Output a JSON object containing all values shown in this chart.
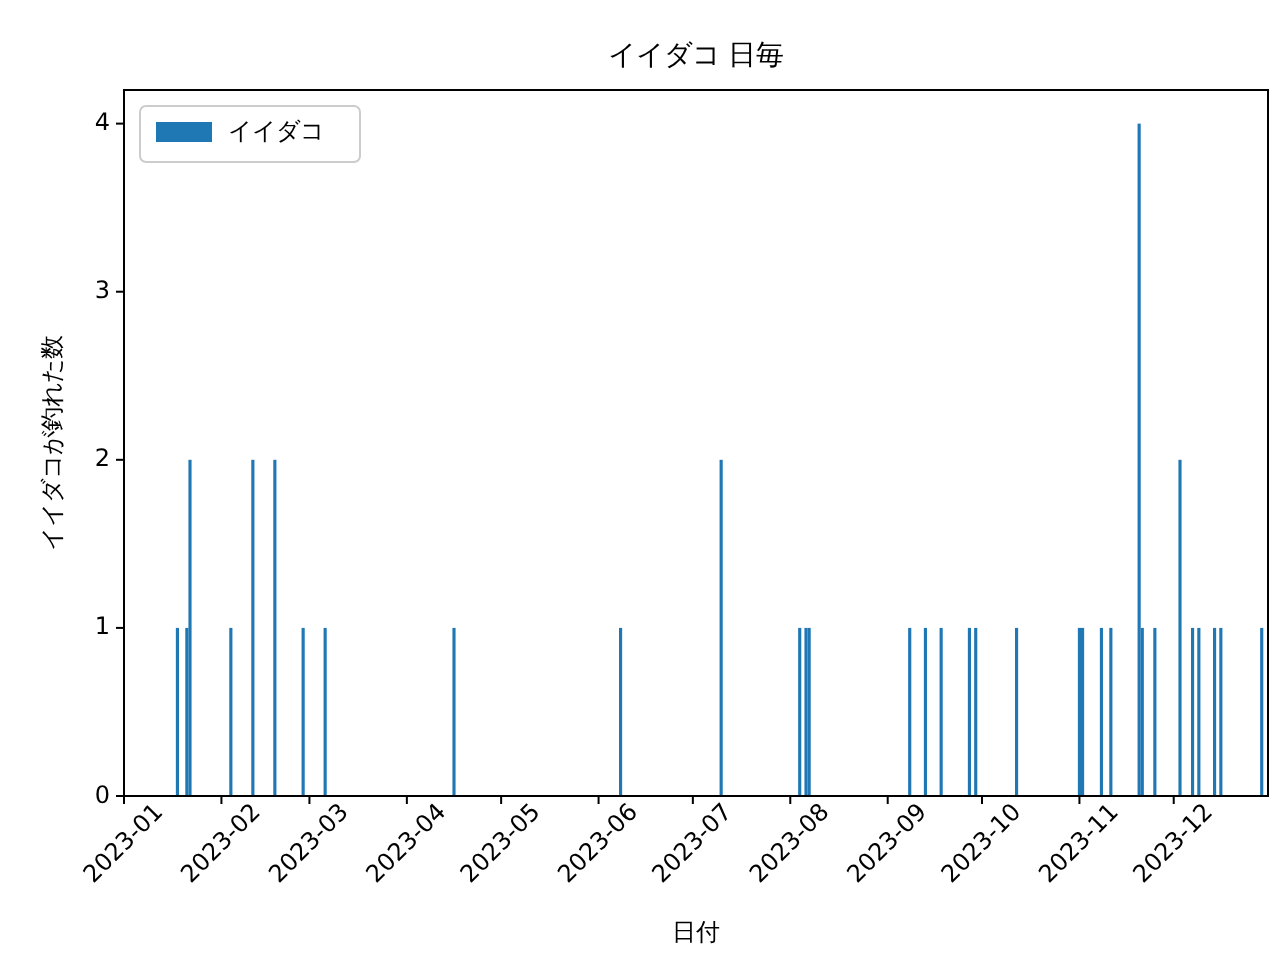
{
  "chart_data": {
    "type": "bar",
    "title": "イイダコ 日毎",
    "xlabel": "日付",
    "ylabel": "イイダコが釣れた数",
    "x": [
      "2023-01-18",
      "2023-01-21",
      "2023-01-22",
      "2023-02-04",
      "2023-02-11",
      "2023-02-18",
      "2023-02-27",
      "2023-03-06",
      "2023-04-16",
      "2023-06-08",
      "2023-07-10",
      "2023-08-04",
      "2023-08-06",
      "2023-08-07",
      "2023-09-08",
      "2023-09-13",
      "2023-09-18",
      "2023-09-27",
      "2023-09-29",
      "2023-10-12",
      "2023-11-01",
      "2023-11-02",
      "2023-11-08",
      "2023-11-11",
      "2023-11-20",
      "2023-11-21",
      "2023-11-25",
      "2023-12-03",
      "2023-12-07",
      "2023-12-09",
      "2023-12-14",
      "2023-12-16",
      "2023-12-29"
    ],
    "series": [
      {
        "name": "イイダコ",
        "color": "#1f77b4",
        "values": [
          1,
          1,
          2,
          1,
          2,
          2,
          1,
          1,
          1,
          1,
          2,
          1,
          1,
          1,
          1,
          1,
          1,
          1,
          1,
          1,
          1,
          1,
          1,
          1,
          4,
          1,
          1,
          2,
          1,
          1,
          1,
          1,
          1
        ]
      }
    ],
    "xlim": [
      "2023-01-01",
      "2023-12-31"
    ],
    "xticks": [
      "2023-01",
      "2023-02",
      "2023-03",
      "2023-04",
      "2023-05",
      "2023-06",
      "2023-07",
      "2023-08",
      "2023-09",
      "2023-10",
      "2023-11",
      "2023-12"
    ],
    "ylim": [
      0,
      4.2
    ],
    "yticks": [
      0,
      1,
      2,
      3,
      4
    ],
    "legend": "top left",
    "grid": false
  }
}
